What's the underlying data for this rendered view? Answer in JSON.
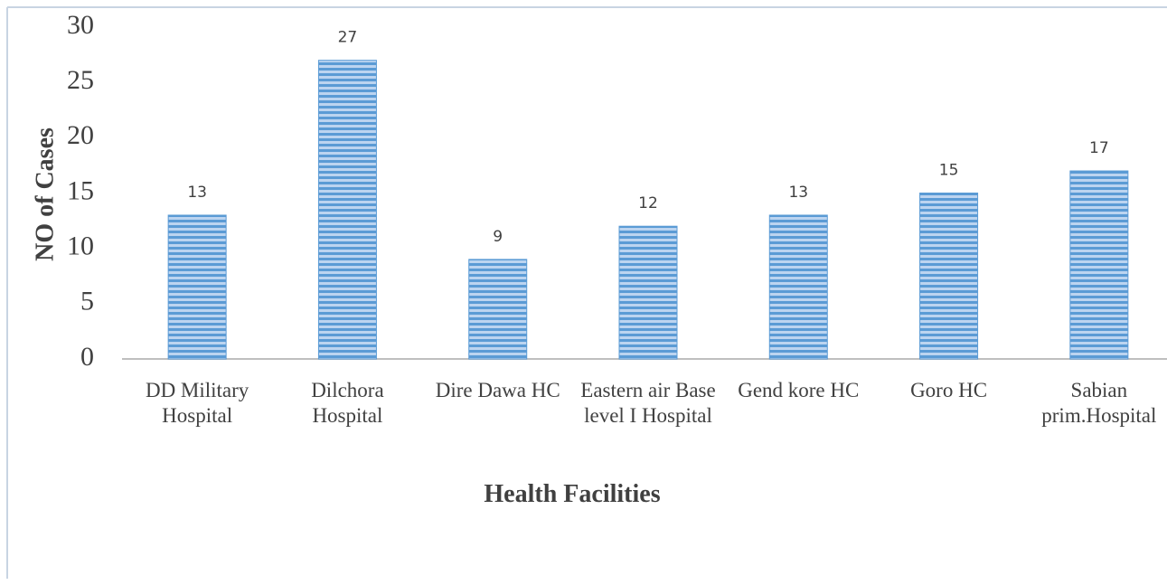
{
  "chart_data": {
    "type": "bar",
    "x_label": "Health Facilities",
    "y_label": "NO of Cases",
    "categories": [
      "DD Military Hospital",
      "Dilchora Hospital",
      "Dire Dawa HC",
      "Eastern air Base  level I Hospital",
      "Gend kore HC",
      "Goro HC",
      "Sabian prim.Hospital"
    ],
    "values": [
      13,
      27,
      9,
      12,
      13,
      15,
      17
    ],
    "color": "#5b9bd5",
    "ylim": [
      0,
      30
    ],
    "yticks": [
      0,
      5,
      10,
      15,
      20,
      25,
      30
    ],
    "grid": false
  }
}
